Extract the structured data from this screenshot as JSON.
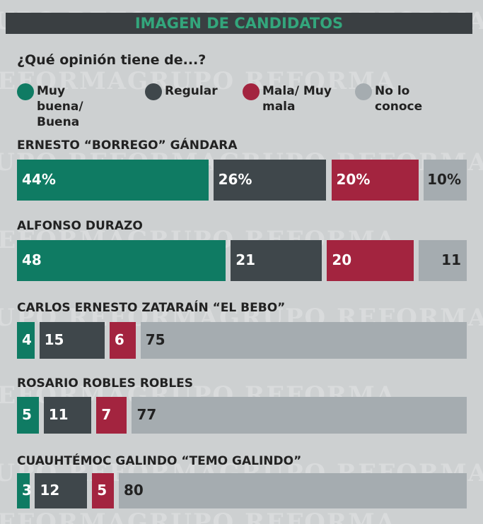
{
  "chart_data": {
    "type": "stacked-bar",
    "title": "IMAGEN DE CANDIDATOS",
    "subtitle": "¿Qué opinión tiene de...?",
    "watermark": "GRUPO REFORMA",
    "categories": [
      "ERNESTO “BORREGO” GÁNDARA",
      "ALFONSO DURAZO",
      "CARLOS ERNESTO ZATARAÍN “EL BEBO”",
      "ROSARIO ROBLES ROBLES",
      "CUAUHTÉMOC GALINDO “TEMO GALINDO”"
    ],
    "series": [
      {
        "name": "Muy buena/ Buena",
        "color": "#0f7b63",
        "values": [
          44,
          48,
          4,
          5,
          3
        ],
        "value_labels": [
          "44%",
          "48",
          "4",
          "5",
          "3"
        ]
      },
      {
        "name": "Regular",
        "color": "#3f474b",
        "values": [
          26,
          21,
          15,
          11,
          12
        ],
        "value_labels": [
          "26%",
          "21",
          "15",
          "11",
          "12"
        ]
      },
      {
        "name": "Mala/ Muy mala",
        "color": "#a3243f",
        "values": [
          20,
          20,
          6,
          7,
          5
        ],
        "value_labels": [
          "20%",
          "20",
          "6",
          "7",
          "5"
        ]
      },
      {
        "name": "No lo conoce",
        "color": "#a5acb0",
        "values": [
          10,
          11,
          75,
          77,
          80
        ],
        "value_labels": [
          "10%",
          "11",
          "75",
          "77",
          "80"
        ]
      }
    ]
  }
}
